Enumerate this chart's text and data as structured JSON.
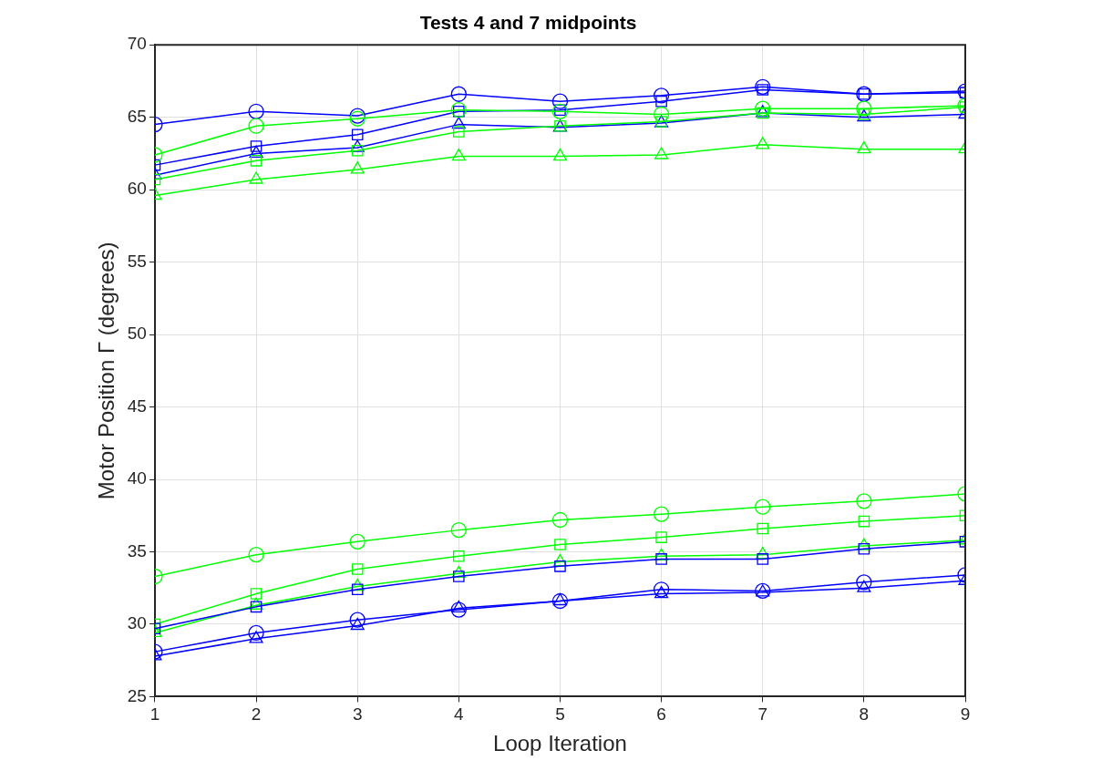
{
  "chart_data": {
    "type": "line",
    "title": "Tests 4 and 7 midpoints",
    "xlabel": "Loop Iteration",
    "ylabel": "Motor Position Γ (degrees)",
    "x": [
      1,
      2,
      3,
      4,
      5,
      6,
      7,
      8,
      9
    ],
    "xlim": [
      1,
      9
    ],
    "xticks": [
      1,
      2,
      3,
      4,
      5,
      6,
      7,
      8,
      9
    ],
    "ylim": [
      25,
      70
    ],
    "yticks": [
      25,
      30,
      35,
      40,
      45,
      50,
      55,
      60,
      65,
      70
    ],
    "grid": true,
    "legend": false,
    "line_style": "solid",
    "series": [
      {
        "color": "#0000ff",
        "marker": "circle",
        "values": [
          64.5,
          65.4,
          65.1,
          66.6,
          66.1,
          66.5,
          67.1,
          66.6,
          66.8
        ]
      },
      {
        "color": "#0000ff",
        "marker": "square",
        "values": [
          61.7,
          63.0,
          63.8,
          65.4,
          65.5,
          66.1,
          66.9,
          66.6,
          66.7
        ]
      },
      {
        "color": "#0000ff",
        "marker": "triangle",
        "values": [
          61.0,
          62.5,
          62.9,
          64.5,
          64.3,
          64.6,
          65.3,
          65.0,
          65.2
        ]
      },
      {
        "color": "#00ff00",
        "marker": "circle",
        "values": [
          62.4,
          64.4,
          64.9,
          65.5,
          65.4,
          65.2,
          65.6,
          65.6,
          65.8
        ]
      },
      {
        "color": "#00ff00",
        "marker": "square",
        "values": [
          60.7,
          62.0,
          62.7,
          64.0,
          64.4,
          64.7,
          65.3,
          65.2,
          65.7
        ]
      },
      {
        "color": "#00ff00",
        "marker": "triangle",
        "values": [
          59.6,
          60.7,
          61.4,
          62.3,
          62.3,
          62.4,
          63.1,
          62.8,
          62.8
        ]
      },
      {
        "color": "#00ff00",
        "marker": "circle",
        "values": [
          33.3,
          34.8,
          35.7,
          36.5,
          37.2,
          37.6,
          38.1,
          38.5,
          39.0
        ]
      },
      {
        "color": "#00ff00",
        "marker": "square",
        "values": [
          30.0,
          32.1,
          33.8,
          34.7,
          35.5,
          36.0,
          36.6,
          37.1,
          37.5
        ]
      },
      {
        "color": "#00ff00",
        "marker": "triangle",
        "values": [
          29.4,
          31.3,
          32.6,
          33.5,
          34.3,
          34.7,
          34.8,
          35.4,
          35.8
        ]
      },
      {
        "color": "#0000ff",
        "marker": "square",
        "values": [
          29.7,
          31.2,
          32.4,
          33.3,
          34.0,
          34.5,
          34.5,
          35.2,
          35.7
        ]
      },
      {
        "color": "#0000ff",
        "marker": "circle",
        "values": [
          28.1,
          29.4,
          30.3,
          31.0,
          31.6,
          32.4,
          32.3,
          32.9,
          33.4
        ]
      },
      {
        "color": "#0000ff",
        "marker": "triangle",
        "values": [
          27.8,
          29.0,
          29.9,
          31.1,
          31.6,
          32.1,
          32.2,
          32.5,
          33.0
        ]
      }
    ]
  }
}
